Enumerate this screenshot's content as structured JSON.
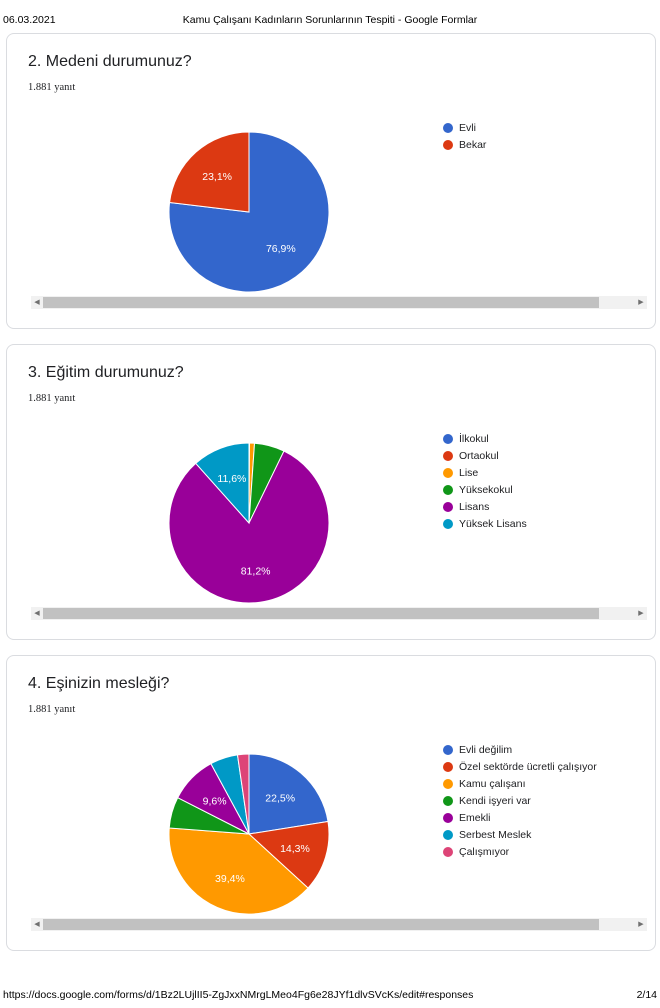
{
  "header": {
    "date": "06.03.2021",
    "title": "Kamu Çalışanı Kadınların Sorunlarının Tespiti - Google Formlar"
  },
  "footer": {
    "url": "https://docs.google.com/forms/d/1Bz2LUjlII5-ZgJxxNMrgLMeo4Fg6e28JYf1dlvSVcKs/edit#responses",
    "page": "2/14"
  },
  "scroll_arrows": {
    "left": "◀",
    "right": "▶"
  },
  "questions": [
    {
      "title": "2. Medeni durumunuz?",
      "responses": "1.881 yanıt"
    },
    {
      "title": "3. Eğitim durumunuz?",
      "responses": "1.881 yanıt"
    },
    {
      "title": "4. Eşinizin mesleği?",
      "responses": "1.881 yanıt"
    }
  ],
  "chart_data": [
    {
      "type": "pie",
      "categories": [
        "Evli",
        "Bekar"
      ],
      "values": [
        76.9,
        23.1
      ],
      "colors": [
        "#3366cc",
        "#dc3912"
      ],
      "slice_labels": [
        "76,9%",
        "23,1%"
      ]
    },
    {
      "type": "pie",
      "categories": [
        "İlkokul",
        "Ortaokul",
        "Lise",
        "Yüksekokul",
        "Lisans",
        "Yüksek Lisans"
      ],
      "values": [
        0.0,
        0.1,
        1.0,
        6.1,
        81.2,
        11.6
      ],
      "colors": [
        "#3366cc",
        "#dc3912",
        "#ff9900",
        "#109618",
        "#990099",
        "#0099c6"
      ],
      "slice_labels": [
        "",
        "",
        "",
        "",
        "81,2%",
        "11,6%"
      ]
    },
    {
      "type": "pie",
      "categories": [
        "Evli değilim",
        "Özel sektörde ücretli çalışıyor",
        "Kamu çalışanı",
        "Kendi işyeri var",
        "Emekli",
        "Serbest Meslek",
        "Çalışmıyor"
      ],
      "values": [
        22.5,
        14.3,
        39.4,
        6.3,
        9.6,
        5.6,
        2.3
      ],
      "colors": [
        "#3366cc",
        "#dc3912",
        "#ff9900",
        "#109618",
        "#990099",
        "#0099c6",
        "#dd4477"
      ],
      "slice_labels": [
        "22,5%",
        "14,3%",
        "39,4%",
        "",
        "9,6%",
        "",
        ""
      ]
    }
  ]
}
